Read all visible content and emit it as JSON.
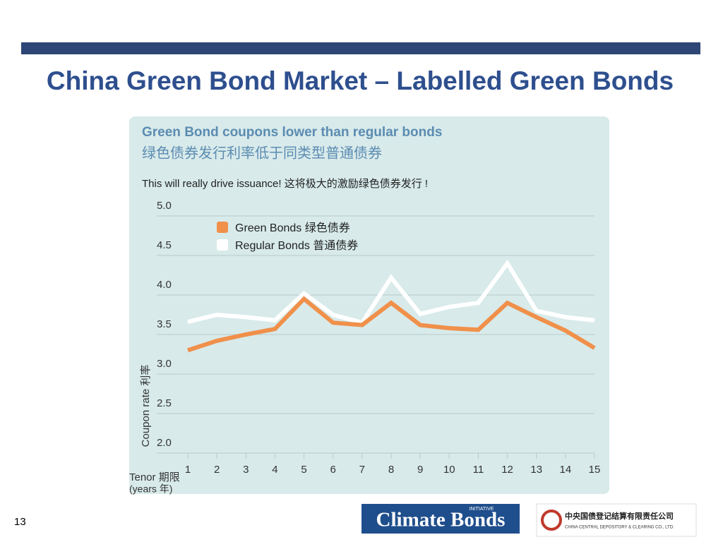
{
  "slide": {
    "title": "China Green Bond Market – Labelled Green Bonds",
    "page_number": "13",
    "logo_left": {
      "name": "Climate Bonds",
      "tag": "INITIATIVE"
    },
    "logo_right": {
      "name": "中央国债登记结算有限责任公司",
      "english": "CHINA CENTRAL DEPOSITORY & CLEARING CO., LTD."
    }
  },
  "chart_data": {
    "type": "line",
    "title": "Green Bond coupons lower than regular bonds",
    "subtitle": "绿色债券发行利率低于同类型普通债券",
    "annotation": "This will really drive issuance! 这将极大的激励绿色债券发行 !",
    "y_label": "Coupon rate 利率",
    "x_label": "Tenor 期限",
    "x_label_unit": "(years 年)",
    "x": [
      1,
      2,
      3,
      4,
      5,
      6,
      7,
      8,
      9,
      10,
      11,
      12,
      13,
      14,
      15
    ],
    "xlim": [
      1,
      15
    ],
    "xticks": [
      1,
      2,
      3,
      4,
      5,
      6,
      7,
      8,
      9,
      10,
      11,
      12,
      13,
      14,
      15
    ],
    "ylim": [
      2,
      5
    ],
    "yticks": [
      {
        "value": 2,
        "label": "2.0"
      },
      {
        "value": 2.5,
        "label": "2.5"
      },
      {
        "value": 3,
        "label": "3.0"
      },
      {
        "value": 3.5,
        "label": "3.5"
      },
      {
        "value": 4,
        "label": "4.0"
      },
      {
        "value": 4.5,
        "label": "4.5"
      },
      {
        "value": 5,
        "label": "5.0"
      }
    ],
    "grid": true,
    "legend": "top-left",
    "series": [
      {
        "name": "Green Bonds 绿色债券",
        "color": "#f0904a",
        "values": [
          3.3,
          3.42,
          3.5,
          3.57,
          3.95,
          3.65,
          3.62,
          3.9,
          3.62,
          3.58,
          3.56,
          3.9,
          3.72,
          3.55,
          3.33
        ]
      },
      {
        "name": "Regular Bonds 普通债券",
        "color": "#ffffff",
        "values": [
          3.66,
          3.75,
          3.72,
          3.68,
          4.02,
          3.75,
          3.65,
          4.22,
          3.76,
          3.85,
          3.9,
          4.4,
          3.8,
          3.72,
          3.68
        ]
      }
    ]
  }
}
